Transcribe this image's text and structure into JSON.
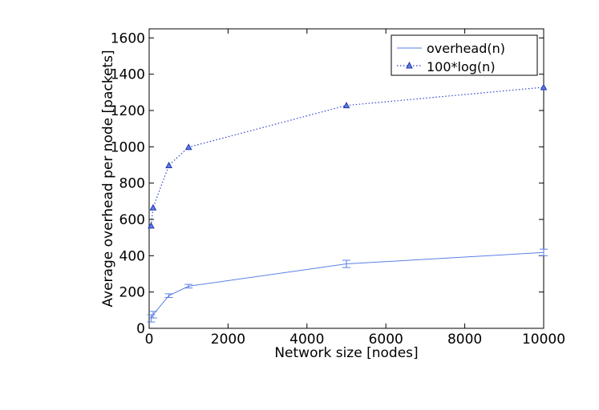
{
  "chart_data": {
    "type": "line",
    "xlabel": "Network size [nodes]",
    "ylabel": "Average overhead per node [packets]",
    "xlim": [
      0,
      10000
    ],
    "ylim": [
      0,
      1650
    ],
    "xticks": [
      0,
      2000,
      4000,
      6000,
      8000,
      10000
    ],
    "yticks": [
      0,
      200,
      400,
      600,
      800,
      1000,
      1200,
      1400,
      1600
    ],
    "grid": false,
    "legend_position": "top-right",
    "series": [
      {
        "name": "overhead(n)",
        "style": "solid",
        "marker": "none",
        "color": "#5b7fe6",
        "x": [
          50,
          100,
          500,
          1000,
          5000,
          10000
        ],
        "y": [
          55,
          75,
          180,
          232,
          355,
          418
        ],
        "err": [
          20,
          18,
          10,
          10,
          20,
          18
        ]
      },
      {
        "name": "100*log(n)",
        "style": "dotted",
        "marker": "triangle",
        "color": "#3344cc",
        "x": [
          50,
          100,
          500,
          1000,
          5000,
          10000
        ],
        "y": [
          565,
          665,
          898,
          998,
          1228,
          1328
        ]
      }
    ]
  }
}
